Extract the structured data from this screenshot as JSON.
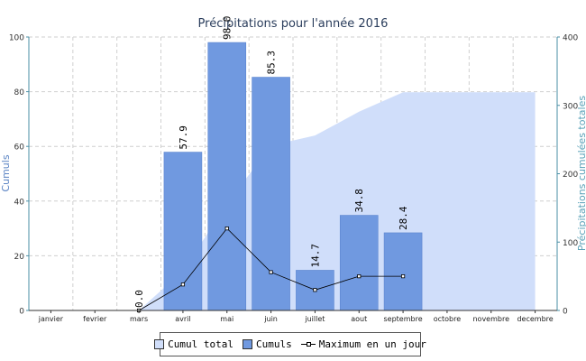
{
  "chart_data": {
    "type": "bar",
    "title": "Précipitations pour l'année 2016",
    "ylabel": "Cumuls",
    "y2label": "Précipitations cumulées totales",
    "categories": [
      "janvier",
      "fevrier",
      "mars",
      "avril",
      "mai",
      "juin",
      "juillet",
      "aout",
      "septembre",
      "octobre",
      "novembre",
      "decembre"
    ],
    "ylim": [
      0,
      100
    ],
    "y2lim": [
      0,
      400
    ],
    "yticks": [
      0,
      20,
      40,
      60,
      80,
      100
    ],
    "y2ticks": [
      0,
      100,
      200,
      300,
      400
    ],
    "grid": true,
    "legend_position": "bottom",
    "series": [
      {
        "name": "Cumul total",
        "type": "area",
        "axis": "right",
        "color": "#d0defa",
        "values": [
          null,
          null,
          0,
          57.9,
          155.9,
          241.2,
          255.9,
          290.7,
          319.1,
          319.1,
          319.1,
          319.1
        ]
      },
      {
        "name": "Cumuls",
        "type": "bar",
        "axis": "left",
        "color": "#7099e0",
        "values": [
          null,
          null,
          0.0,
          57.9,
          98.0,
          85.3,
          14.7,
          34.8,
          28.4,
          null,
          null,
          null
        ],
        "labels": [
          "",
          "",
          "0.0",
          "57.9",
          "98.0",
          "85.3",
          "14.7",
          "34.8",
          "28.4",
          "",
          "",
          ""
        ]
      },
      {
        "name": "Maximum en un jour",
        "type": "line",
        "axis": "left",
        "color": "#000000",
        "values": [
          null,
          null,
          0,
          9.5,
          30,
          14,
          7.5,
          12.5,
          12.5,
          null,
          null,
          null
        ]
      }
    ]
  }
}
